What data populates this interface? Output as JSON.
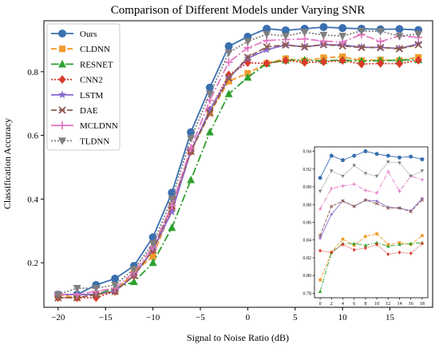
{
  "chart_data": {
    "type": "line",
    "title": "Comparison of Different Models under Varying SNR",
    "xlabel": "Signal to Noise Ratio (dB)",
    "ylabel": "Classification Accuracy",
    "xlim": [
      -21.5,
      19.5
    ],
    "ylim": [
      0.06,
      0.96
    ],
    "xticks": [
      -20,
      -15,
      -10,
      -5,
      0,
      5,
      10,
      15
    ],
    "yticks": [
      0.2,
      0.4,
      0.6,
      0.8
    ],
    "legend_position": "top-left",
    "x": [
      -20,
      -18,
      -16,
      -14,
      -12,
      -10,
      -8,
      -6,
      -4,
      -2,
      0,
      2,
      4,
      6,
      8,
      10,
      12,
      14,
      16,
      18
    ],
    "series": [
      {
        "name": "Ours",
        "color": "#3a6fb0",
        "dash": "",
        "marker": "circle",
        "values": [
          0.1,
          0.1,
          0.13,
          0.15,
          0.19,
          0.28,
          0.42,
          0.61,
          0.75,
          0.88,
          0.91,
          0.935,
          0.93,
          0.935,
          0.94,
          0.937,
          0.935,
          0.933,
          0.934,
          0.931
        ]
      },
      {
        "name": "CLDNN",
        "color": "#f39a2b",
        "dash": "7,3",
        "marker": "square",
        "values": [
          0.1,
          0.09,
          0.1,
          0.11,
          0.17,
          0.22,
          0.37,
          0.55,
          0.67,
          0.77,
          0.795,
          0.826,
          0.841,
          0.834,
          0.844,
          0.847,
          0.835,
          0.837,
          0.835,
          0.845
        ]
      },
      {
        "name": "RESNET",
        "color": "#2ea02e",
        "dash": "10,3,2,3",
        "marker": "triangle-up",
        "values": [
          0.1,
          0.1,
          0.1,
          0.12,
          0.14,
          0.2,
          0.31,
          0.46,
          0.61,
          0.73,
          0.782,
          0.826,
          0.836,
          0.836,
          0.834,
          0.837,
          0.833,
          0.835,
          0.836,
          0.837
        ]
      },
      {
        "name": "CNN2",
        "color": "#d93a2b",
        "dash": "2,2",
        "marker": "diamond",
        "values": [
          0.09,
          0.09,
          0.09,
          0.11,
          0.16,
          0.24,
          0.37,
          0.55,
          0.68,
          0.79,
          0.828,
          0.826,
          0.835,
          0.829,
          0.831,
          0.835,
          0.824,
          0.826,
          0.825,
          0.836
        ]
      },
      {
        "name": "LSTM",
        "color": "#8a6ad1",
        "dash": "",
        "marker": "star",
        "values": [
          0.1,
          0.1,
          0.1,
          0.11,
          0.16,
          0.24,
          0.36,
          0.55,
          0.68,
          0.78,
          0.842,
          0.869,
          0.884,
          0.878,
          0.885,
          0.884,
          0.877,
          0.876,
          0.873,
          0.887
        ]
      },
      {
        "name": "DAE",
        "color": "#8c5a4f",
        "dash": "7,3",
        "marker": "x",
        "values": [
          0.09,
          0.09,
          0.1,
          0.11,
          0.16,
          0.24,
          0.38,
          0.55,
          0.67,
          0.78,
          0.845,
          0.878,
          0.884,
          0.878,
          0.885,
          0.881,
          0.876,
          0.876,
          0.872,
          0.885
        ]
      },
      {
        "name": "MCLDNN",
        "color": "#e377c2",
        "dash": "10,3,2,3",
        "marker": "plus",
        "values": [
          0.1,
          0.1,
          0.11,
          0.12,
          0.17,
          0.25,
          0.38,
          0.56,
          0.71,
          0.83,
          0.875,
          0.898,
          0.901,
          0.903,
          0.896,
          0.893,
          0.917,
          0.895,
          0.912,
          0.908
        ]
      },
      {
        "name": "TLDNN",
        "color": "#7f7f7f",
        "dash": "2,2",
        "marker": "triangle-down",
        "values": [
          0.1,
          0.12,
          0.12,
          0.13,
          0.18,
          0.26,
          0.4,
          0.59,
          0.73,
          0.86,
          0.895,
          0.918,
          0.912,
          0.924,
          0.915,
          0.912,
          0.928,
          0.927,
          0.912,
          0.918
        ]
      }
    ],
    "inset": {
      "xlim": [
        -1,
        19
      ],
      "ylim": [
        0.775,
        0.945
      ],
      "x": [
        0,
        2,
        4,
        6,
        8,
        10,
        12,
        14,
        16,
        18
      ],
      "xticks": [
        0,
        2,
        4,
        6,
        8,
        10,
        12,
        14,
        16,
        18
      ],
      "yticks": [
        0.78,
        0.8,
        0.82,
        0.84,
        0.86,
        0.88,
        0.9,
        0.92,
        0.94
      ]
    }
  }
}
